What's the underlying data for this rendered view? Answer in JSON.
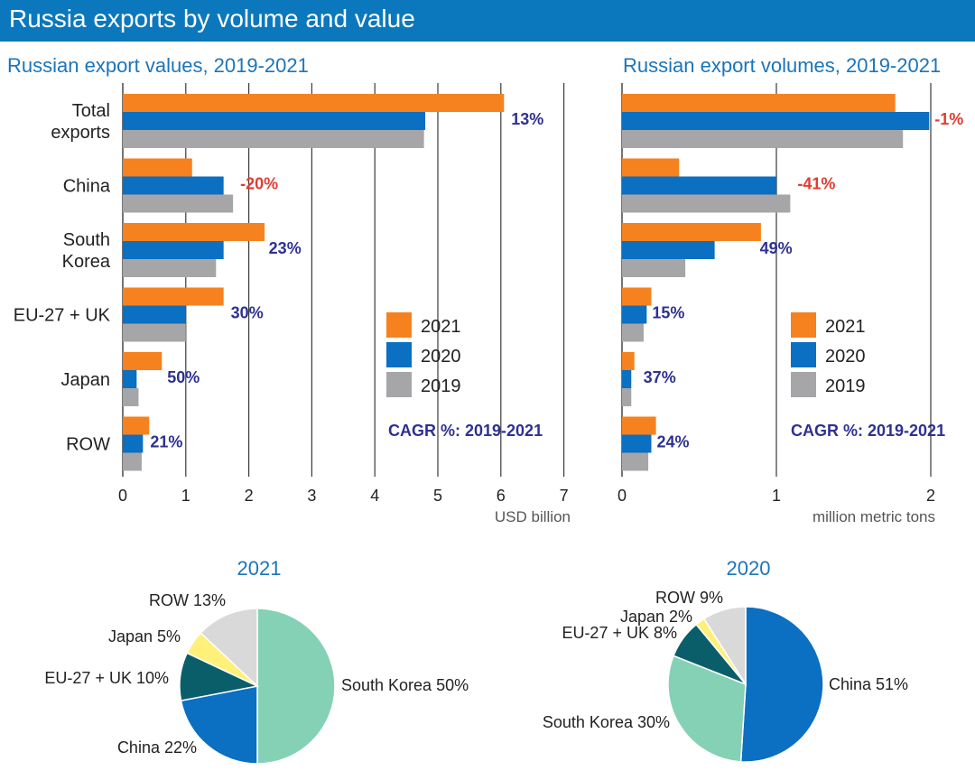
{
  "title": "Russia exports by volume and value",
  "colors": {
    "y2021": "#f5821f",
    "y2020": "#0b6fc2",
    "y2019": "#a6a6a8",
    "banner": "#0b78bd",
    "subtitle": "#1b75bb",
    "cagr_positive": "#2e3192",
    "cagr_negative": "#e03c31",
    "pie_south_korea": "#85d1b5",
    "pie_china": "#0b6fc2",
    "pie_eu_uk": "#0a5e6a",
    "pie_japan": "#fff07a",
    "pie_row": "#d9d9d9"
  },
  "chart_data": [
    {
      "type": "bar",
      "orientation": "horizontal",
      "title": "Russian export values, 2019-2021",
      "categories": [
        "Total exports",
        "China",
        "South Korea",
        "EU-27 + UK",
        "Japan",
        "ROW"
      ],
      "category_lines": [
        [
          "Total",
          "exports"
        ],
        [
          "China"
        ],
        [
          "South",
          "Korea"
        ],
        [
          "EU-27 + UK"
        ],
        [
          "Japan"
        ],
        [
          "ROW"
        ]
      ],
      "series": [
        {
          "name": "2021",
          "values": [
            6.05,
            1.1,
            2.25,
            1.6,
            0.62,
            0.42
          ]
        },
        {
          "name": "2020",
          "values": [
            4.8,
            1.6,
            1.6,
            1.0,
            0.22,
            0.32
          ]
        },
        {
          "name": "2019",
          "values": [
            4.78,
            1.75,
            1.48,
            1.0,
            0.25,
            0.3
          ]
        }
      ],
      "cagr": [
        "13%",
        "-20%",
        "23%",
        "30%",
        "50%",
        "21%"
      ],
      "xticks": [
        "0",
        "1",
        "2",
        "3",
        "4",
        "5",
        "6",
        "7"
      ],
      "xlim": [
        0,
        7
      ],
      "unit_label": "USD billion",
      "cagr_label": "CAGR %: 2019-2021",
      "legend": [
        "2021",
        "2020",
        "2019"
      ],
      "grid": true
    },
    {
      "type": "bar",
      "orientation": "horizontal",
      "title": "Russian export volumes, 2019-2021",
      "categories": [
        "Total exports",
        "China",
        "South Korea",
        "EU-27 + UK",
        "Japan",
        "ROW"
      ],
      "series": [
        {
          "name": "2021",
          "values": [
            1.77,
            0.37,
            0.9,
            0.19,
            0.08,
            0.22
          ]
        },
        {
          "name": "2020",
          "values": [
            1.99,
            1.0,
            0.6,
            0.16,
            0.06,
            0.19
          ]
        },
        {
          "name": "2019",
          "values": [
            1.82,
            1.09,
            0.41,
            0.14,
            0.06,
            0.17
          ]
        }
      ],
      "cagr": [
        "-1%",
        "-41%",
        "49%",
        "15%",
        "37%",
        "24%"
      ],
      "xticks": [
        "0",
        "1",
        "2"
      ],
      "xlim": [
        0,
        2
      ],
      "unit_label": "million metric tons",
      "cagr_label": "CAGR %: 2019-2021",
      "legend": [
        "2021",
        "2020",
        "2019"
      ],
      "grid": true
    },
    {
      "type": "pie",
      "title": "2021",
      "slices": [
        {
          "label": "South Korea 50%",
          "value": 50,
          "color_key": "pie_south_korea"
        },
        {
          "label": "China 22%",
          "value": 22,
          "color_key": "pie_china"
        },
        {
          "label": "EU-27 + UK 10%",
          "value": 10,
          "color_key": "pie_eu_uk"
        },
        {
          "label": "Japan 5%",
          "value": 5,
          "color_key": "pie_japan"
        },
        {
          "label": "ROW 13%",
          "value": 13,
          "color_key": "pie_row"
        }
      ]
    },
    {
      "type": "pie",
      "title": "2020",
      "slices": [
        {
          "label": "China 51%",
          "value": 51,
          "color_key": "pie_china"
        },
        {
          "label": "South Korea 30%",
          "value": 30,
          "color_key": "pie_south_korea"
        },
        {
          "label": "EU-27 + UK 8%",
          "value": 8,
          "color_key": "pie_eu_uk"
        },
        {
          "label": "Japan 2%",
          "value": 2,
          "color_key": "pie_japan"
        },
        {
          "label": "ROW 9%",
          "value": 9,
          "color_key": "pie_row"
        }
      ]
    }
  ]
}
